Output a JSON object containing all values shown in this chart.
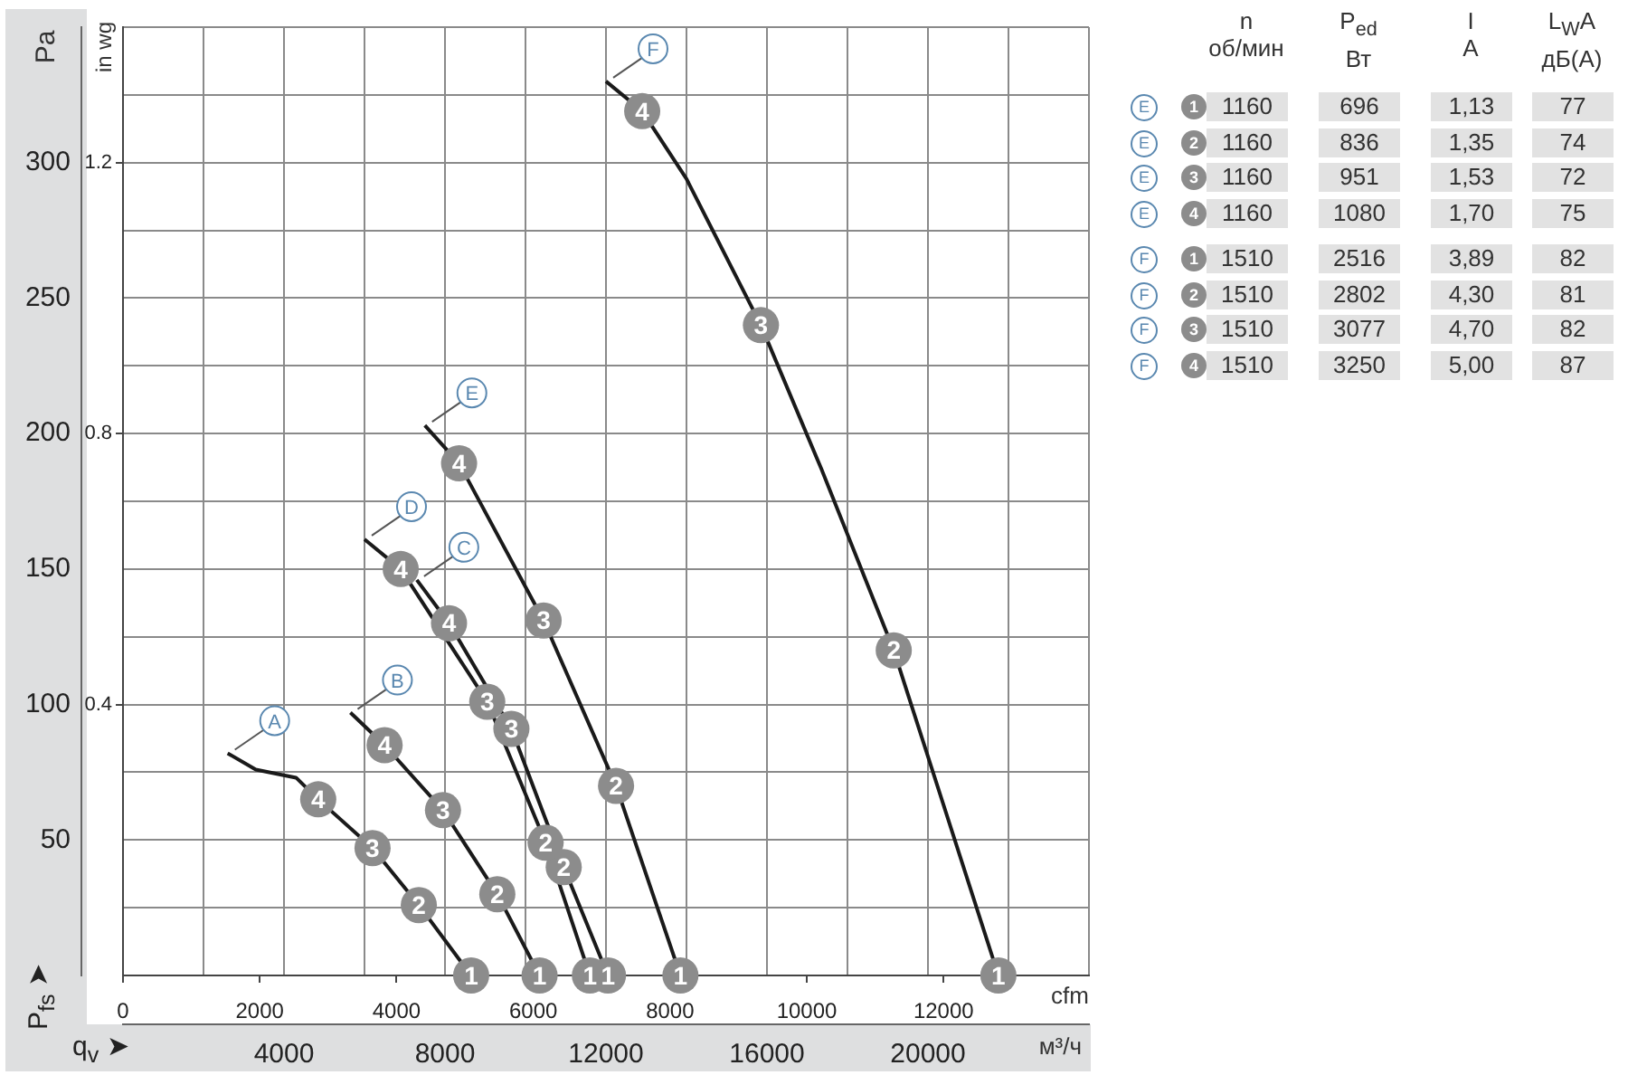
{
  "chart_data": [
    {
      "type": "line",
      "ylabel": "Pa",
      "y2label": "in wg",
      "xlabel": "м³/ч",
      "x2label": "cfm",
      "annotations": [
        "q$_{v}$ ➤",
        "P$_{fs}$ ➤",
        {
          "text": "4",
          "x": 4850,
          "y": 65
        },
        {
          "text": "3",
          "x": 6200,
          "y": 47
        },
        {
          "text": "2",
          "x": 7350,
          "y": 26
        },
        {
          "text": "1",
          "x": 8650,
          "y": 0
        },
        {
          "text": "4",
          "x": 6500,
          "y": 85
        },
        {
          "text": "3",
          "x": 7950,
          "y": 61
        },
        {
          "text": "2",
          "x": 9300,
          "y": 30
        },
        {
          "text": "1",
          "x": 10350,
          "y": 0
        },
        {
          "text": "4",
          "x": 8100,
          "y": 130
        },
        {
          "text": "3",
          "x": 9650,
          "y": 91
        },
        {
          "text": "2",
          "x": 10950,
          "y": 40
        },
        {
          "text": "1",
          "x": 12050,
          "y": 0
        },
        {
          "text": "4",
          "x": 6900,
          "y": 150
        },
        {
          "text": "3",
          "x": 9050,
          "y": 101
        },
        {
          "text": "2",
          "x": 10500,
          "y": 49
        },
        {
          "text": "1",
          "x": 11600,
          "y": 0
        },
        {
          "text": "4",
          "x": 8350,
          "y": 189
        },
        {
          "text": "3",
          "x": 10450,
          "y": 131
        },
        {
          "text": "2",
          "x": 12250,
          "y": 70
        },
        {
          "text": "1",
          "x": 13850,
          "y": 0
        },
        {
          "text": "4",
          "x": 12900,
          "y": 319
        },
        {
          "text": "3",
          "x": 15850,
          "y": 240
        },
        {
          "text": "2",
          "x": 19150,
          "y": 120
        },
        {
          "text": "1",
          "x": 21750,
          "y": 0
        }
      ],
      "xlim": [
        0,
        24000
      ],
      "xticks": [
        {
          "value": 0,
          "label": null
        },
        {
          "value": 2000,
          "label": null
        },
        4000,
        {
          "value": 6000,
          "label": null
        },
        8000,
        {
          "value": 10000,
          "label": null
        },
        12000,
        {
          "value": 14000,
          "label": null
        },
        16000,
        {
          "value": 18000,
          "label": null
        },
        20000,
        {
          "value": 22000,
          "label": null
        },
        {
          "value": 24000,
          "label": null
        }
      ],
      "x2lim": [
        0,
        14126
      ],
      "x2ticks": [
        0,
        2000,
        4000,
        6000,
        8000,
        10000,
        12000
      ],
      "ylim": [
        0,
        350
      ],
      "yticks": [
        {
          "value": 0,
          "label": null
        },
        {
          "value": 25,
          "label": null
        },
        50,
        {
          "value": 75,
          "label": null
        },
        100,
        {
          "value": 125,
          "label": null
        },
        150,
        {
          "value": 175,
          "label": null
        },
        200,
        {
          "value": 225,
          "label": null
        },
        250,
        {
          "value": 275,
          "label": null
        },
        300,
        {
          "value": 325,
          "label": null
        },
        {
          "value": 350,
          "label": null
        }
      ],
      "y2lim": [
        0,
        1.4
      ],
      "y2ticks": [
        0.4,
        0.8,
        1.2
      ],
      "grid": true,
      "legend": false,
      "marker": "circle",
      "line_style": "solid",
      "series": [
        {
          "name": "A",
          "color": "#1a1a1a",
          "x": [
            2600,
            3300,
            4300,
            4850,
            6200,
            7350,
            8650
          ],
          "values": [
            82,
            76,
            73,
            65,
            47,
            26,
            0
          ]
        },
        {
          "name": "B",
          "color": "#1a1a1a",
          "x": [
            5650,
            6500,
            7950,
            9300,
            10350
          ],
          "values": [
            97,
            85,
            61,
            30,
            0
          ]
        },
        {
          "name": "C",
          "color": "#1a1a1a",
          "x": [
            7300,
            8100,
            9650,
            10950,
            12050
          ],
          "values": [
            146,
            130,
            91,
            40,
            0
          ]
        },
        {
          "name": "D",
          "color": "#1a1a1a",
          "x": [
            6000,
            6900,
            9050,
            10500,
            11600
          ],
          "values": [
            161,
            150,
            101,
            49,
            0
          ]
        },
        {
          "name": "E",
          "color": "#1a1a1a",
          "x": [
            7500,
            8350,
            10450,
            12250,
            13850
          ],
          "values": [
            203,
            189,
            131,
            70,
            0
          ]
        },
        {
          "name": "F",
          "color": "#1a1a1a",
          "x": [
            12000,
            12900,
            14000,
            15850,
            17350,
            19150,
            21750
          ],
          "values": [
            330,
            319,
            294,
            240,
            187,
            120,
            0
          ]
        }
      ]
    },
    {
      "type": "heatmap",
      "color": "#e2e2e2",
      "categories": [
        "n\nоб/мин",
        "P$_{ed}$\nВт",
        "I\nA",
        "L$_{W}$A\nдБ(A)"
      ],
      "y_categories": [
        "E 1",
        "E 2",
        "E 3",
        "E 4",
        "F 1",
        "F 2",
        "F 3",
        "F 4"
      ],
      "cells": [
        [
          1160,
          696,
          1.13,
          77
        ],
        [
          1160,
          836,
          1.35,
          74
        ],
        [
          1160,
          951,
          1.53,
          72
        ],
        [
          1160,
          1080,
          1.7,
          75
        ],
        [
          1510,
          2516,
          3.89,
          82
        ],
        [
          1510,
          2802,
          4.3,
          81
        ],
        [
          1510,
          3077,
          4.7,
          82
        ],
        [
          1510,
          3250,
          5.0,
          87
        ]
      ],
      "cell_labels": [
        [
          "1160",
          "696",
          "1,13",
          "77"
        ],
        [
          "1160",
          "836",
          "1,35",
          "74"
        ],
        [
          "1160",
          "951",
          "1,53",
          "72"
        ],
        [
          "1160",
          "1080",
          "1,70",
          "75"
        ],
        [
          "1510",
          "2516",
          "3,89",
          "82"
        ],
        [
          "1510",
          "2802",
          "4,30",
          "81"
        ],
        [
          "1510",
          "3077",
          "4,70",
          "82"
        ],
        [
          "1510",
          "3250",
          "5,00",
          "87"
        ]
      ]
    }
  ]
}
